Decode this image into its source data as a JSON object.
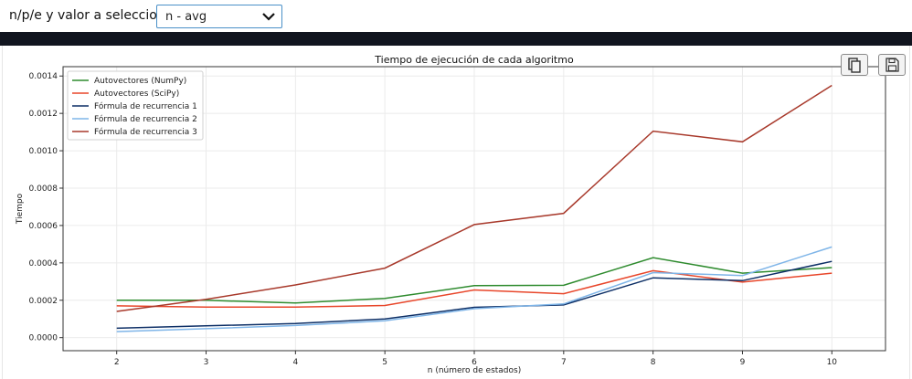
{
  "controls": {
    "selector_label": "n/p/e y valor a seleccionar:",
    "selector_value": "n - avg"
  },
  "toolbar": {
    "copy_icon": "copy-icon",
    "save_icon": "save-icon"
  },
  "chart_data": {
    "type": "line",
    "title": "Tiempo de ejecución de cada algoritmo",
    "xlabel": "n (número de estados)",
    "ylabel": "Tiempo",
    "x": [
      2,
      3,
      4,
      5,
      6,
      7,
      8,
      9,
      10
    ],
    "xlim": [
      1.4,
      10.6
    ],
    "ylim": [
      -7e-05,
      0.00145
    ],
    "xticks": [
      "2",
      "3",
      "4",
      "5",
      "6",
      "7",
      "8",
      "9",
      "10"
    ],
    "yticks": [
      "0.0000",
      "0.0002",
      "0.0004",
      "0.0006",
      "0.0008",
      "0.0010",
      "0.0012",
      "0.0014"
    ],
    "grid": true,
    "legend_position": "upper-left",
    "series": [
      {
        "name": "Autovectores (NumPy)",
        "color": "#2e8b2e",
        "values": [
          0.0002,
          0.0002,
          0.000185,
          0.00021,
          0.000278,
          0.00028,
          0.000428,
          0.000345,
          0.000375
        ]
      },
      {
        "name": "Autovectores (SciPy)",
        "color": "#e8462a",
        "values": [
          0.00017,
          0.000163,
          0.000163,
          0.000172,
          0.000255,
          0.000235,
          0.000358,
          0.000297,
          0.000345
        ]
      },
      {
        "name": "Fórmula de recurrencia 1",
        "color": "#0d2f66",
        "values": [
          5e-05,
          6.3e-05,
          7.5e-05,
          0.0001,
          0.000162,
          0.000175,
          0.00032,
          0.000305,
          0.000408
        ]
      },
      {
        "name": "Fórmula de recurrencia 2",
        "color": "#7fb5e8",
        "values": [
          3.2e-05,
          4.8e-05,
          6.5e-05,
          9e-05,
          0.000155,
          0.00018,
          0.000348,
          0.000332,
          0.000485
        ]
      },
      {
        "name": "Fórmula de recurrencia 3",
        "color": "#a8392b",
        "values": [
          0.00014,
          0.000205,
          0.000282,
          0.000372,
          0.000605,
          0.000665,
          0.001105,
          0.001048,
          0.00135
        ]
      }
    ]
  }
}
